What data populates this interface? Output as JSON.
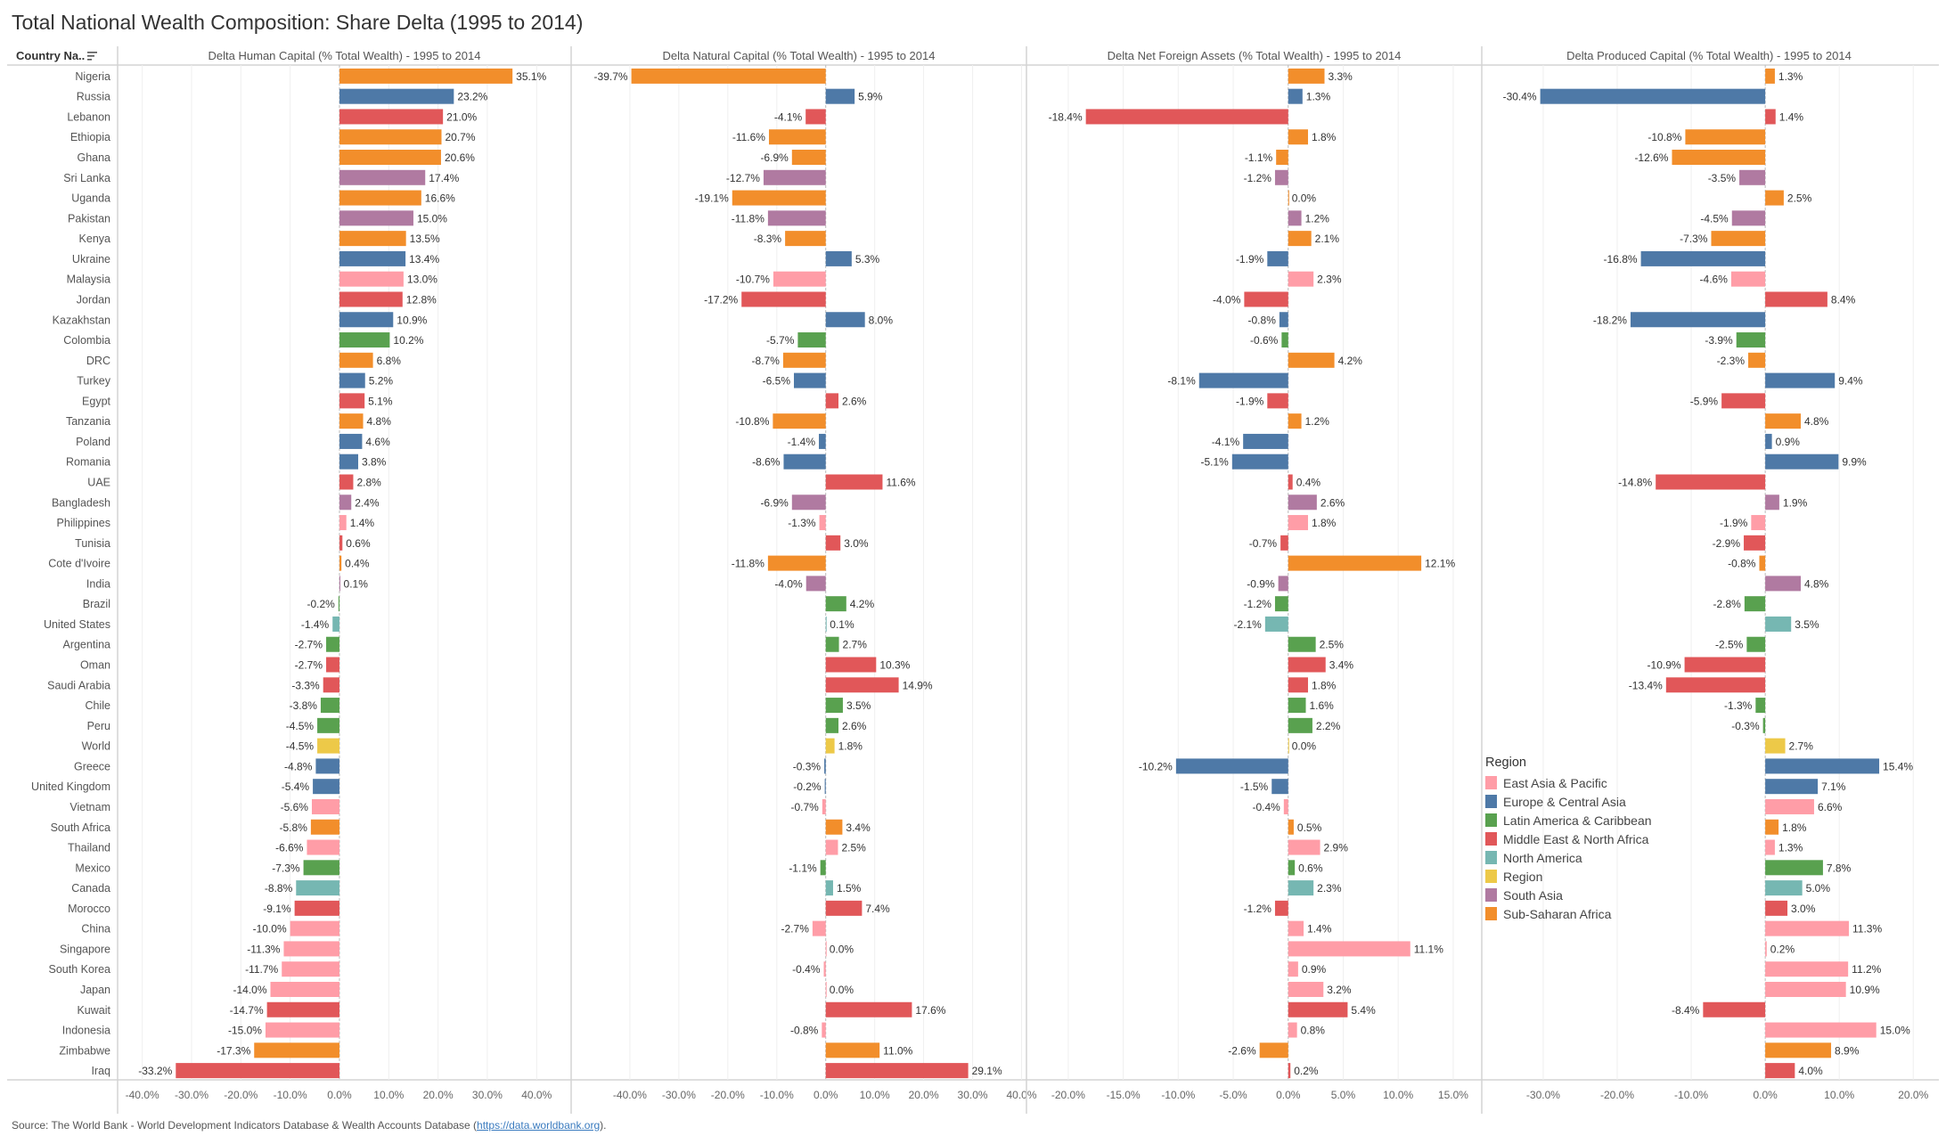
{
  "title": "Total National Wealth Composition: Share Delta (1995 to 2014)",
  "row_header": "Country Na..",
  "row_header_icon": "sort-descending-icon",
  "source": {
    "prefix": "Source: The World Bank - World Development Indicators Database & Wealth Accounts Database (",
    "link": "https://data.worldbank.org",
    "suffix": ")."
  },
  "legend": {
    "title": "Region",
    "items": [
      {
        "label": "East Asia & Pacific",
        "color": "#ff9da7"
      },
      {
        "label": "Europe & Central Asia",
        "color": "#4e79a7"
      },
      {
        "label": "Latin America & Caribbean",
        "color": "#59a14f"
      },
      {
        "label": "Middle East & North Africa",
        "color": "#e15759"
      },
      {
        "label": "North America",
        "color": "#76b7b2"
      },
      {
        "label": "Region",
        "color": "#edc948"
      },
      {
        "label": "South Asia",
        "color": "#b07aa1"
      },
      {
        "label": "Sub-Saharan Africa",
        "color": "#f28e2b"
      }
    ]
  },
  "chart_data": {
    "type": "bar",
    "orientation": "horizontal",
    "grid": true,
    "legend_placement": "inside-right-panel",
    "categories": [
      "Nigeria",
      "Russia",
      "Lebanon",
      "Ethiopia",
      "Ghana",
      "Sri Lanka",
      "Uganda",
      "Pakistan",
      "Kenya",
      "Ukraine",
      "Malaysia",
      "Jordan",
      "Kazakhstan",
      "Colombia",
      "DRC",
      "Turkey",
      "Egypt",
      "Tanzania",
      "Poland",
      "Romania",
      "UAE",
      "Bangladesh",
      "Philippines",
      "Tunisia",
      "Cote d'Ivoire",
      "India",
      "Brazil",
      "United States",
      "Argentina",
      "Oman",
      "Saudi Arabia",
      "Chile",
      "Peru",
      "World",
      "Greece",
      "United Kingdom",
      "Vietnam",
      "South Africa",
      "Thailand",
      "Mexico",
      "Canada",
      "Morocco",
      "China",
      "Singapore",
      "South Korea",
      "Japan",
      "Kuwait",
      "Indonesia",
      "Zimbabwe",
      "Iraq"
    ],
    "regions": [
      "Sub-Saharan Africa",
      "Europe & Central Asia",
      "Middle East & North Africa",
      "Sub-Saharan Africa",
      "Sub-Saharan Africa",
      "South Asia",
      "Sub-Saharan Africa",
      "South Asia",
      "Sub-Saharan Africa",
      "Europe & Central Asia",
      "East Asia & Pacific",
      "Middle East & North Africa",
      "Europe & Central Asia",
      "Latin America & Caribbean",
      "Sub-Saharan Africa",
      "Europe & Central Asia",
      "Middle East & North Africa",
      "Sub-Saharan Africa",
      "Europe & Central Asia",
      "Europe & Central Asia",
      "Middle East & North Africa",
      "South Asia",
      "East Asia & Pacific",
      "Middle East & North Africa",
      "Sub-Saharan Africa",
      "South Asia",
      "Latin America & Caribbean",
      "North America",
      "Latin America & Caribbean",
      "Middle East & North Africa",
      "Middle East & North Africa",
      "Latin America & Caribbean",
      "Latin America & Caribbean",
      "Region",
      "Europe & Central Asia",
      "Europe & Central Asia",
      "East Asia & Pacific",
      "Sub-Saharan Africa",
      "East Asia & Pacific",
      "Latin America & Caribbean",
      "North America",
      "Middle East & North Africa",
      "East Asia & Pacific",
      "East Asia & Pacific",
      "East Asia & Pacific",
      "East Asia & Pacific",
      "Middle East & North Africa",
      "East Asia & Pacific",
      "Sub-Saharan Africa",
      "Middle East & North Africa"
    ],
    "unit": "%",
    "series": [
      {
        "name": "Delta Human Capital (% Total Wealth) - 1995 to 2014",
        "xlim": [
          -45,
          47
        ],
        "ticks": [
          -40,
          -30,
          -20,
          -10,
          0,
          10,
          20,
          30,
          40
        ],
        "values": [
          35.1,
          23.2,
          21.0,
          20.7,
          20.6,
          17.4,
          16.6,
          15.0,
          13.5,
          13.4,
          13.0,
          12.8,
          10.9,
          10.2,
          6.8,
          5.2,
          5.1,
          4.8,
          4.6,
          3.8,
          2.8,
          2.4,
          1.4,
          0.6,
          0.4,
          0.1,
          -0.2,
          -1.4,
          -2.7,
          -2.7,
          -3.3,
          -3.8,
          -4.5,
          -4.5,
          -4.8,
          -5.4,
          -5.6,
          -5.8,
          -6.6,
          -7.3,
          -8.8,
          -9.1,
          -10.0,
          -11.3,
          -11.7,
          -14.0,
          -14.7,
          -15.0,
          -17.3,
          -33.2
        ]
      },
      {
        "name": "Delta Natural Capital (% Total Wealth) - 1995 to 2014",
        "xlim": [
          -52,
          41
        ],
        "ticks": [
          -40,
          -30,
          -20,
          -10,
          0,
          10,
          20,
          30,
          40
        ],
        "values": [
          -39.7,
          5.9,
          -4.1,
          -11.6,
          -6.9,
          -12.7,
          -19.1,
          -11.8,
          -8.3,
          5.3,
          -10.7,
          -17.2,
          8.0,
          -5.7,
          -8.7,
          -6.5,
          2.6,
          -10.8,
          -1.4,
          -8.6,
          11.6,
          -6.9,
          -1.3,
          3.0,
          -11.8,
          -4.0,
          4.2,
          0.1,
          2.7,
          10.3,
          14.9,
          3.5,
          2.6,
          1.8,
          -0.3,
          -0.2,
          -0.7,
          3.4,
          2.5,
          -1.1,
          1.5,
          7.4,
          -2.7,
          0.0,
          -0.4,
          0.0,
          17.6,
          -0.8,
          11.0,
          29.1
        ]
      },
      {
        "name": "Delta Net Foreign Assets (% Total Wealth) - 1995 to 2014",
        "xlim": [
          -23.8,
          17.6
        ],
        "ticks": [
          -20,
          -15,
          -10,
          -5,
          0,
          5,
          10,
          15
        ],
        "values": [
          3.3,
          1.3,
          -18.4,
          1.8,
          -1.1,
          -1.2,
          0.0,
          1.2,
          2.1,
          -1.9,
          2.3,
          -4.0,
          -0.8,
          -0.6,
          4.2,
          -8.1,
          -1.9,
          1.2,
          -4.1,
          -5.1,
          0.4,
          2.6,
          1.8,
          -0.7,
          12.1,
          -0.9,
          -1.2,
          -2.1,
          2.5,
          3.4,
          1.8,
          1.6,
          2.2,
          0.0,
          -10.2,
          -1.5,
          -0.4,
          0.5,
          2.9,
          0.6,
          2.3,
          -1.2,
          1.4,
          11.1,
          0.9,
          3.2,
          5.4,
          0.8,
          -2.6,
          0.2
        ]
      },
      {
        "name": "Delta Produced Capital (% Total Wealth) - 1995 to 2014",
        "xlim": [
          -38.3,
          23.1
        ],
        "ticks": [
          -30,
          -20,
          -10,
          0,
          10,
          20
        ],
        "values": [
          1.3,
          -30.4,
          1.4,
          -10.8,
          -12.6,
          -3.5,
          2.5,
          -4.5,
          -7.3,
          -16.8,
          -4.6,
          8.4,
          -18.2,
          -3.9,
          -2.3,
          9.4,
          -5.9,
          4.8,
          0.9,
          9.9,
          -14.8,
          1.9,
          -1.9,
          -2.9,
          -0.8,
          4.8,
          -2.8,
          3.5,
          -2.5,
          -10.9,
          -13.4,
          -1.3,
          -0.3,
          2.7,
          15.4,
          7.1,
          6.6,
          1.8,
          1.3,
          7.8,
          5.0,
          3.0,
          11.3,
          0.2,
          11.2,
          10.9,
          -8.4,
          15.0,
          8.9,
          4.0
        ]
      }
    ]
  }
}
